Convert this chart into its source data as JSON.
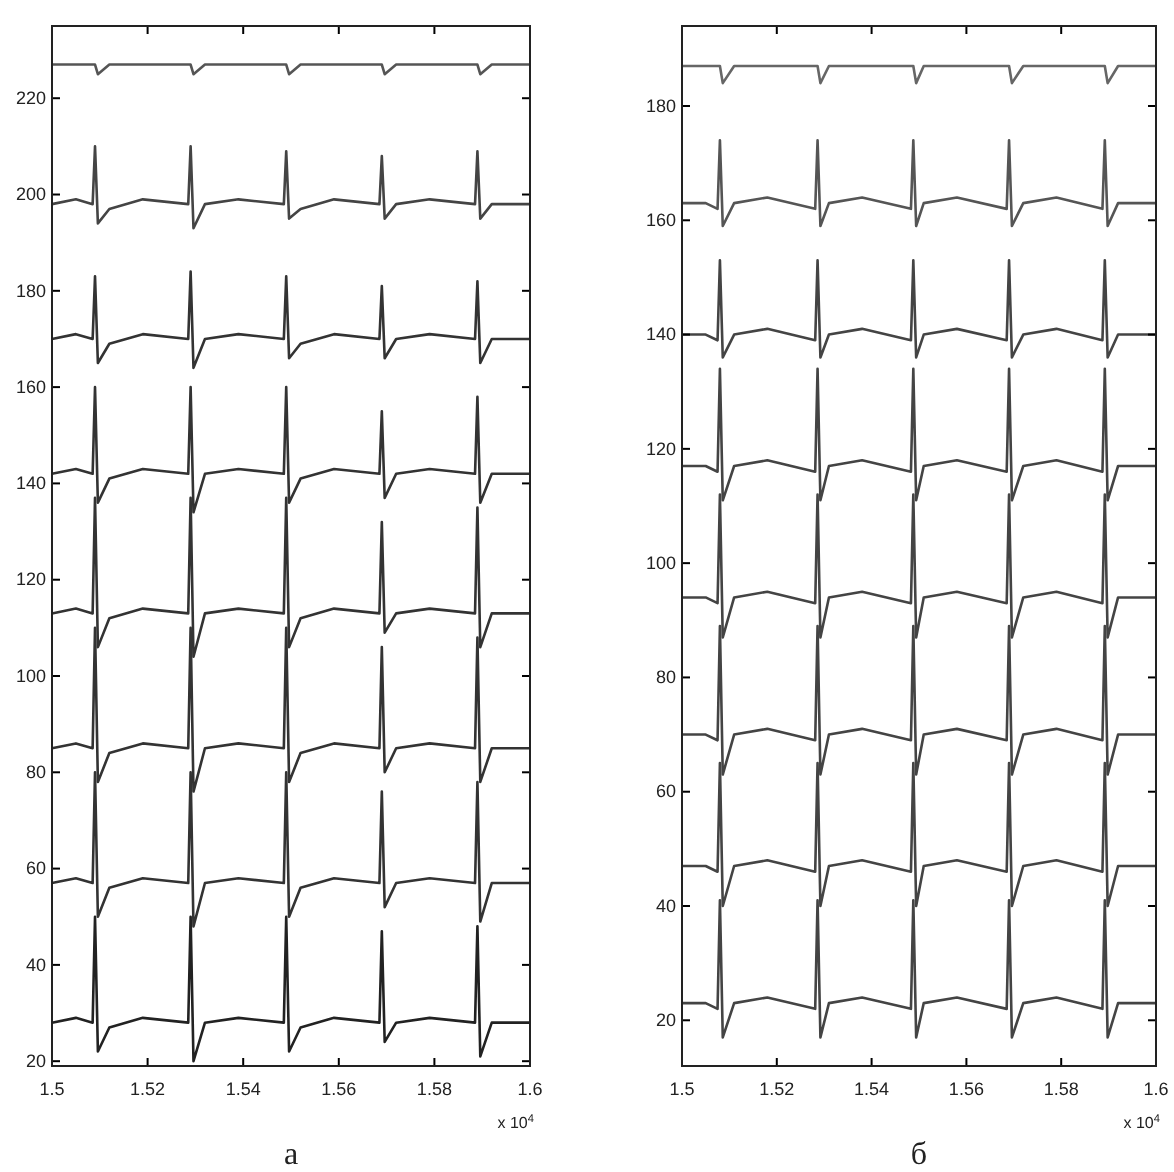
{
  "chart_data": [
    {
      "type": "line",
      "xlabel": "а",
      "annotations": [
        "x 10$^{4}$"
      ],
      "x": [
        1.5,
        1.505,
        1.5085,
        1.509,
        1.5096,
        1.512,
        1.519,
        1.5285,
        1.529,
        1.5296,
        1.532,
        1.539,
        1.5485,
        1.549,
        1.5496,
        1.552,
        1.559,
        1.5685,
        1.569,
        1.5696,
        1.572,
        1.579,
        1.5885,
        1.589,
        1.5896,
        1.592,
        1.6
      ],
      "xlim": [
        1.5,
        1.6
      ],
      "xticks": [
        1.5,
        1.52,
        1.54,
        1.56,
        1.58,
        1.6
      ],
      "ylim": [
        19,
        235
      ],
      "yticks": [
        20,
        40,
        60,
        80,
        100,
        120,
        140,
        160,
        180,
        200,
        220
      ],
      "grid": false,
      "series": [
        {
          "color": "#555555",
          "values": [
            227,
            227,
            227,
            227,
            225,
            227,
            227,
            227,
            227,
            225,
            227,
            227,
            227,
            227,
            225,
            227,
            227,
            227,
            227,
            225,
            227,
            227,
            227,
            227,
            225,
            227,
            227
          ]
        },
        {
          "color": "#444444",
          "values": [
            198,
            199,
            198,
            210,
            194,
            197,
            199,
            198,
            210,
            193,
            198,
            199,
            198,
            209,
            195,
            197,
            199,
            198,
            208,
            195,
            198,
            199,
            198,
            209,
            195,
            198,
            198
          ]
        },
        {
          "color": "#333333",
          "values": [
            170,
            171,
            170,
            183,
            165,
            169,
            171,
            170,
            184,
            164,
            170,
            171,
            170,
            183,
            166,
            169,
            171,
            170,
            181,
            166,
            170,
            171,
            170,
            182,
            165,
            170,
            170
          ]
        },
        {
          "color": "#333333",
          "values": [
            142,
            143,
            142,
            160,
            136,
            141,
            143,
            142,
            160,
            134,
            142,
            143,
            142,
            160,
            136,
            141,
            143,
            142,
            155,
            137,
            142,
            143,
            142,
            158,
            136,
            142,
            142
          ]
        },
        {
          "color": "#333333",
          "values": [
            113,
            114,
            113,
            137,
            106,
            112,
            114,
            113,
            137,
            104,
            113,
            114,
            113,
            137,
            106,
            112,
            114,
            113,
            132,
            109,
            113,
            114,
            113,
            135,
            106,
            113,
            113
          ]
        },
        {
          "color": "#333333",
          "values": [
            85,
            86,
            85,
            110,
            78,
            84,
            86,
            85,
            110,
            76,
            85,
            86,
            85,
            110,
            78,
            84,
            86,
            85,
            106,
            80,
            85,
            86,
            85,
            108,
            78,
            85,
            85
          ]
        },
        {
          "color": "#333333",
          "values": [
            57,
            58,
            57,
            80,
            50,
            56,
            58,
            57,
            80,
            48,
            57,
            58,
            57,
            80,
            50,
            56,
            58,
            57,
            76,
            52,
            57,
            58,
            57,
            78,
            49,
            57,
            57
          ]
        },
        {
          "color": "#222222",
          "values": [
            28,
            29,
            28,
            50,
            22,
            27,
            29,
            28,
            50,
            20,
            28,
            29,
            28,
            50,
            22,
            27,
            29,
            28,
            47,
            24,
            28,
            29,
            28,
            48,
            21,
            28,
            28
          ]
        }
      ]
    },
    {
      "type": "line",
      "xlabel": "б",
      "annotations": [
        "x 10$^{4}$"
      ],
      "x": [
        1.5,
        1.505,
        1.5075,
        1.508,
        1.5086,
        1.511,
        1.518,
        1.5281,
        1.5286,
        1.5292,
        1.531,
        1.538,
        1.5483,
        1.5488,
        1.5494,
        1.551,
        1.558,
        1.5685,
        1.569,
        1.5696,
        1.572,
        1.579,
        1.5887,
        1.5892,
        1.5898,
        1.592,
        1.6
      ],
      "xlim": [
        1.5,
        1.6
      ],
      "xticks": [
        1.5,
        1.52,
        1.54,
        1.56,
        1.58,
        1.6
      ],
      "ylim": [
        12,
        194
      ],
      "yticks": [
        20,
        40,
        60,
        80,
        100,
        120,
        140,
        160,
        180
      ],
      "grid": false,
      "series": [
        {
          "color": "#666666",
          "values": [
            187,
            187,
            187,
            187,
            184,
            187,
            187,
            187,
            187,
            184,
            187,
            187,
            187,
            187,
            184,
            187,
            187,
            187,
            187,
            184,
            187,
            187,
            187,
            187,
            184,
            187,
            187
          ]
        },
        {
          "color": "#555555",
          "values": [
            163,
            163,
            162,
            174,
            159,
            163,
            164,
            162,
            174,
            159,
            163,
            164,
            162,
            174,
            159,
            163,
            164,
            162,
            174,
            159,
            163,
            164,
            162,
            174,
            159,
            163,
            163
          ]
        },
        {
          "color": "#444444",
          "values": [
            140,
            140,
            139,
            153,
            136,
            140,
            141,
            139,
            153,
            136,
            140,
            141,
            139,
            153,
            136,
            140,
            141,
            139,
            153,
            136,
            140,
            141,
            139,
            153,
            136,
            140,
            140
          ]
        },
        {
          "color": "#444444",
          "values": [
            117,
            117,
            116,
            134,
            111,
            117,
            118,
            116,
            134,
            111,
            117,
            118,
            116,
            134,
            111,
            117,
            118,
            116,
            134,
            111,
            117,
            118,
            116,
            134,
            111,
            117,
            117
          ]
        },
        {
          "color": "#444444",
          "values": [
            94,
            94,
            93,
            112,
            87,
            94,
            95,
            93,
            112,
            87,
            94,
            95,
            93,
            112,
            87,
            94,
            95,
            93,
            112,
            87,
            94,
            95,
            93,
            112,
            87,
            94,
            94
          ]
        },
        {
          "color": "#444444",
          "values": [
            70,
            70,
            69,
            89,
            63,
            70,
            71,
            69,
            89,
            63,
            70,
            71,
            69,
            89,
            63,
            70,
            71,
            69,
            89,
            63,
            70,
            71,
            69,
            89,
            63,
            70,
            70
          ]
        },
        {
          "color": "#444444",
          "values": [
            47,
            47,
            46,
            65,
            40,
            47,
            48,
            46,
            65,
            40,
            47,
            48,
            46,
            65,
            40,
            47,
            48,
            46,
            65,
            40,
            47,
            48,
            46,
            65,
            40,
            47,
            47
          ]
        },
        {
          "color": "#444444",
          "values": [
            23,
            23,
            22,
            41,
            17,
            23,
            24,
            22,
            41,
            17,
            23,
            24,
            22,
            41,
            17,
            23,
            24,
            22,
            41,
            17,
            23,
            24,
            22,
            41,
            17,
            23,
            23
          ]
        }
      ]
    }
  ]
}
